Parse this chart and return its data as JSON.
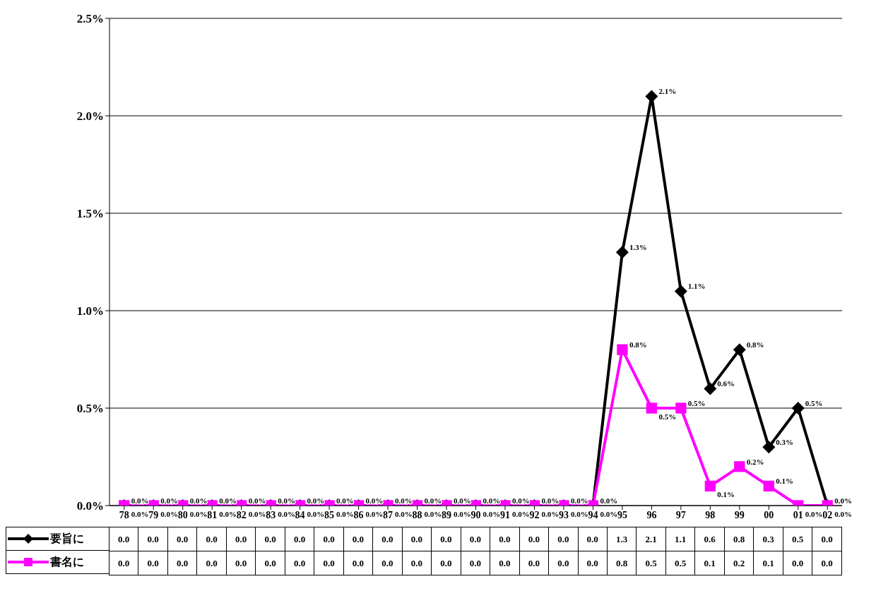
{
  "chart_data": [
    {
      "type": "line",
      "categories": [
        "78",
        "79",
        "80",
        "81",
        "82",
        "83",
        "84",
        "85",
        "86",
        "87",
        "88",
        "89",
        "90",
        "91",
        "92",
        "93",
        "94",
        "95",
        "96",
        "97",
        "98",
        "99",
        "00",
        "01",
        "02"
      ],
      "series": [
        {
          "name": "要旨に",
          "color": "#000000",
          "marker": "diamond",
          "values": [
            0.0,
            0.0,
            0.0,
            0.0,
            0.0,
            0.0,
            0.0,
            0.0,
            0.0,
            0.0,
            0.0,
            0.0,
            0.0,
            0.0,
            0.0,
            0.0,
            0.0,
            1.3,
            2.1,
            1.1,
            0.6,
            0.8,
            0.3,
            0.5,
            0.0
          ],
          "value_labels": [
            "0.0%",
            "0.0%",
            "0.0%",
            "0.0%",
            "0.0%",
            "0.0%",
            "0.0%",
            "0.0%",
            "0.0%",
            "0.0%",
            "0.0%",
            "0.0%",
            "0.0%",
            "0.0%",
            "0.0%",
            "0.0%",
            "0.0%",
            "1.3%",
            "2.1%",
            "1.1%",
            "0.6%",
            "0.8%",
            "0.3%",
            "0.5%",
            "0.0%"
          ]
        },
        {
          "name": "書名に",
          "color": "#ff00ff",
          "marker": "square",
          "values": [
            0.0,
            0.0,
            0.0,
            0.0,
            0.0,
            0.0,
            0.0,
            0.0,
            0.0,
            0.0,
            0.0,
            0.0,
            0.0,
            0.0,
            0.0,
            0.0,
            0.0,
            0.8,
            0.5,
            0.5,
            0.1,
            0.2,
            0.1,
            0.0,
            0.0
          ],
          "value_labels": [
            "0.0%",
            "0.0%",
            "0.0%",
            "0.0%",
            "0.0%",
            "0.0%",
            "0.0%",
            "0.0%",
            "0.0%",
            "0.0%",
            "0.0%",
            "0.0%",
            "0.0%",
            "0.0%",
            "0.0%",
            "0.0%",
            "0.0%",
            "0.8%",
            "0.5%",
            "0.5%",
            "0.1%",
            "0.2%",
            "0.1%",
            "0.0%",
            "0.0%"
          ]
        }
      ],
      "ylim": [
        0,
        2.5
      ],
      "yticks": [
        {
          "value": 0,
          "label": "0.0%"
        },
        {
          "value": 0.5,
          "label": "0.5%"
        },
        {
          "value": 1,
          "label": "1.0%"
        },
        {
          "value": 1.5,
          "label": "1.5%"
        },
        {
          "value": 2,
          "label": "2.0%"
        },
        {
          "value": 2.5,
          "label": "2.5%"
        }
      ],
      "grid": "y",
      "legend": "bottom left",
      "data_labels": true
    },
    {
      "type": "other",
      "annotations": [
        "0.0",
        "0.0",
        "0.0",
        "0.0",
        "0.0",
        "0.0",
        "0.0",
        "0.0",
        "0.0",
        "0.0",
        "0.0",
        "0.0",
        "0.0",
        "0.0",
        "0.0",
        "0.0",
        "0.0",
        "1.3",
        "2.1",
        "1.1",
        "0.6",
        "0.8",
        "0.3",
        "0.5",
        "0.0"
      ]
    },
    {
      "type": "other",
      "annotations": [
        "0.0",
        "0.0",
        "0.0",
        "0.0",
        "0.0",
        "0.0",
        "0.0",
        "0.0",
        "0.0",
        "0.0",
        "0.0",
        "0.0",
        "0.0",
        "0.0",
        "0.0",
        "0.0",
        "0.0",
        "0.8",
        "0.5",
        "0.5",
        "0.1",
        "0.2",
        "0.1",
        "0.0",
        "0.0"
      ]
    }
  ]
}
